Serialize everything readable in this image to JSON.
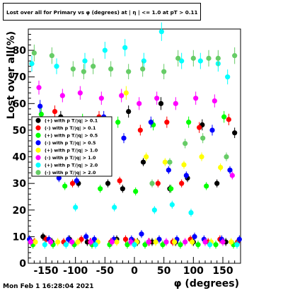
{
  "title": "Lost over all for Primary vs φ (degrees) at | η | <= 1.0 at pT > 0.11",
  "footer": "Mon Feb  1 16:28:04 2021",
  "chart_data": {
    "type": "scatter",
    "title": "Lost over all for Primary vs φ (degrees) at | η | <= 1.0 at pT > 0.11",
    "xlabel": "φ (degrees)",
    "ylabel": "Lost over all(%)",
    "xlim": [
      -180,
      180
    ],
    "ylim": [
      0,
      88
    ],
    "xticks": [
      -150,
      -100,
      -50,
      0,
      50,
      100,
      150
    ],
    "yticks": [
      0,
      10,
      20,
      30,
      40,
      50,
      60,
      70,
      80
    ],
    "grid": false,
    "legend_position": "left-middle",
    "error_bars": true,
    "series": [
      {
        "name": "(+) with p_{T}/|q| > 0.1",
        "color": "#000000",
        "x": [
          -175,
          -155,
          -140,
          -125,
          -110,
          -95,
          -80,
          -65,
          -45,
          -30,
          -20,
          -10,
          5,
          15,
          30,
          45,
          60,
          70,
          90,
          100,
          115,
          140,
          155,
          170
        ],
        "y": [
          8,
          10,
          8,
          55,
          9,
          30,
          8,
          8,
          30,
          9,
          28,
          57,
          8,
          38,
          8,
          60,
          28,
          8,
          32,
          8,
          52,
          30,
          8,
          49
        ]
      },
      {
        "name": "(-) with p_{T}/|q| > 0.1",
        "color": "#ff0000",
        "x": [
          -170,
          -150,
          -135,
          -120,
          -105,
          -90,
          -75,
          -60,
          -40,
          -25,
          -15,
          0,
          10,
          25,
          40,
          55,
          65,
          80,
          95,
          110,
          125,
          145,
          160,
          175
        ],
        "y": [
          8,
          9,
          57,
          8,
          30,
          9,
          8,
          55,
          8,
          31,
          9,
          8,
          50,
          8,
          30,
          53,
          8,
          30,
          9,
          51,
          8,
          9,
          54,
          8
        ]
      },
      {
        "name": "(+) with p_{T}/|q| > 0.5",
        "color": "#00ff00",
        "x": [
          -172,
          -158,
          -138,
          -118,
          -102,
          -88,
          -72,
          -58,
          -42,
          -28,
          -12,
          2,
          18,
          32,
          48,
          62,
          78,
          92,
          108,
          122,
          138,
          152,
          168
        ],
        "y": [
          7,
          56,
          7,
          29,
          7,
          54,
          7,
          28,
          7,
          53,
          7,
          27,
          7,
          52,
          7,
          28,
          7,
          53,
          7,
          29,
          7,
          55,
          7
        ]
      },
      {
        "name": "(-) with p_{T}/|q| > 0.5",
        "color": "#0000ff",
        "x": [
          -178,
          -160,
          -145,
          -128,
          -112,
          -98,
          -82,
          -68,
          -52,
          -35,
          -18,
          -5,
          12,
          28,
          42,
          58,
          72,
          88,
          102,
          118,
          132,
          148,
          162,
          178
        ],
        "y": [
          9,
          59,
          9,
          32,
          9,
          31,
          10,
          9,
          55,
          9,
          47,
          9,
          11,
          53,
          9,
          35,
          9,
          33,
          10,
          9,
          50,
          9,
          35,
          9
        ]
      },
      {
        "name": "(+) with p_{T}/|q| > 1.0",
        "color": "#ffff00",
        "x": [
          -168,
          -148,
          -130,
          -114,
          -96,
          -78,
          -62,
          -48,
          -30,
          -14,
          4,
          20,
          36,
          52,
          68,
          84,
          98,
          114,
          130,
          146,
          164
        ],
        "y": [
          8,
          36,
          8,
          40,
          8,
          37,
          8,
          36,
          8,
          64,
          8,
          40,
          8,
          38,
          8,
          37,
          8,
          40,
          8,
          36,
          8
        ]
      },
      {
        "name": "(-) with p_{T}/|q| > 1.0",
        "color": "#ff00ff",
        "x": [
          -176,
          -162,
          -142,
          -122,
          -106,
          -92,
          -74,
          -56,
          -38,
          -22,
          -6,
          8,
          24,
          38,
          54,
          70,
          86,
          104,
          120,
          136,
          150,
          166
        ],
        "y": [
          8,
          66,
          8,
          63,
          8,
          64,
          8,
          62,
          8,
          63,
          8,
          60,
          8,
          62,
          8,
          60,
          8,
          62,
          8,
          61,
          8,
          33
        ]
      },
      {
        "name": "(+) with p_{T}/|q| > 2.0",
        "color": "#00ffff",
        "x": [
          -174,
          -152,
          -132,
          -116,
          -100,
          -84,
          -66,
          -50,
          -34,
          -16,
          0,
          16,
          34,
          46,
          64,
          80,
          96,
          112,
          128,
          142,
          158,
          174
        ],
        "y": [
          75,
          7,
          74,
          7,
          21,
          76,
          7,
          80,
          21,
          81,
          7,
          76,
          20,
          87,
          22,
          76,
          19,
          76,
          7,
          75,
          70,
          7
        ]
      },
      {
        "name": "(-) with p_{T}/|q| > 2.0",
        "color": "#66cc66",
        "x": [
          -170,
          -140,
          -104,
          -86,
          -70,
          -40,
          -10,
          14,
          30,
          50,
          60,
          74,
          86,
          100,
          116,
          126,
          142,
          156,
          170
        ],
        "y": [
          79,
          78,
          73,
          72,
          74,
          73,
          72,
          73,
          30,
          72,
          38,
          77,
          45,
          77,
          47,
          77,
          77,
          40,
          78
        ]
      }
    ]
  }
}
